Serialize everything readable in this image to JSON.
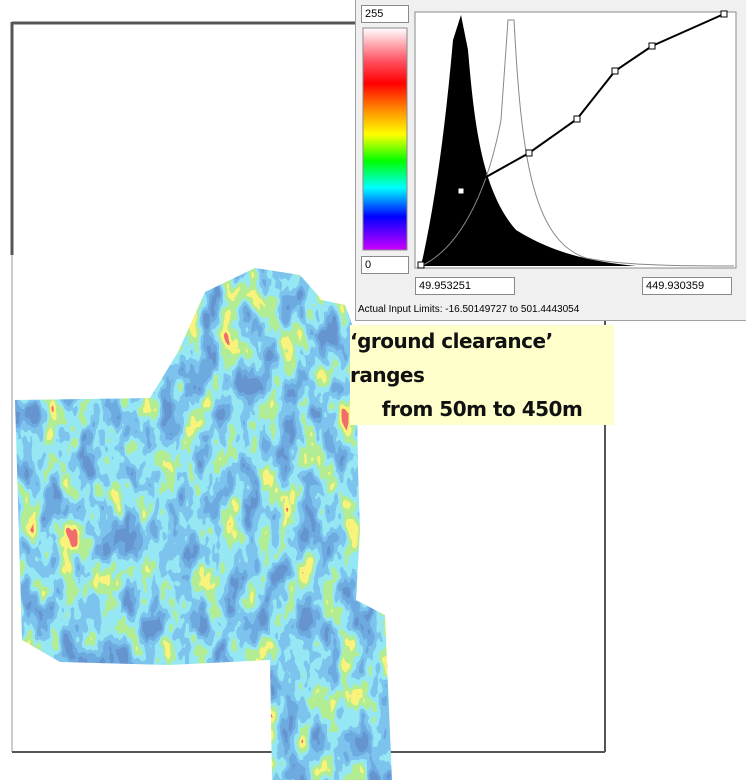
{
  "color_bar": {
    "max_field": "255",
    "min_field": "0"
  },
  "histogram": {
    "low_field": "49.953251",
    "high_field": "449.930359",
    "limits_text": "Actual Input Limits: -16.50149727 to 501.4443054"
  },
  "callout": {
    "lines": [
      "‘ground clearance’ ranges",
      "from 50m to 450m"
    ]
  }
}
